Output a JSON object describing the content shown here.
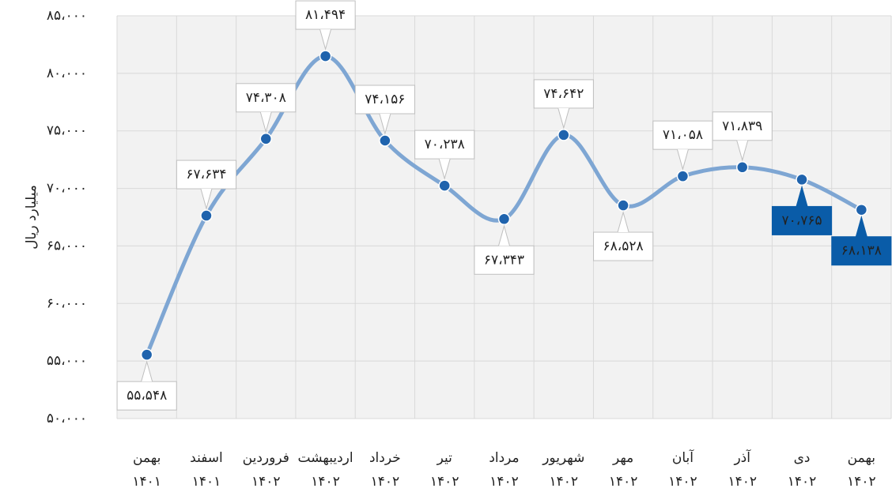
{
  "chart_data": {
    "type": "line",
    "y_label": "میلیارد ریال",
    "categories": [
      "بهمن\n۱۴۰۱",
      "اسفند\n۱۴۰۱",
      "فروردین\n۱۴۰۲",
      "اردیبهشت\n۱۴۰۲",
      "خرداد\n۱۴۰۲",
      "تیر\n۱۴۰۲",
      "مرداد\n۱۴۰۲",
      "شهریور\n۱۴۰۲",
      "مهر\n۱۴۰۲",
      "آبان\n۱۴۰۲",
      "آذر\n۱۴۰۲",
      "دی\n۱۴۰۲",
      "بهمن\n۱۴۰۲"
    ],
    "values": [
      55548,
      67634,
      74308,
      81494,
      74156,
      70238,
      67343,
      74642,
      68528,
      71058,
      71839,
      70765,
      68138
    ],
    "value_labels": [
      "۵۵،۵۴۸",
      "۶۷،۶۳۴",
      "۷۴،۳۰۸",
      "۸۱،۴۹۴",
      "۷۴،۱۵۶",
      "۷۰،۲۳۸",
      "۶۷،۳۴۳",
      "۷۴،۶۴۲",
      "۶۸،۵۲۸",
      "۷۱،۰۵۸",
      "۷۱،۸۳۹",
      "۷۰،۷۶۵",
      "۶۸،۱۳۸"
    ],
    "color": "#7ea6d3",
    "marker_color": "#1f63ad",
    "ylim": [
      50000,
      85000
    ],
    "yticks": [
      {
        "value": 50000,
        "label": "۵۰،۰۰۰"
      },
      {
        "value": 55000,
        "label": "۵۵،۰۰۰"
      },
      {
        "value": 60000,
        "label": "۶۰،۰۰۰"
      },
      {
        "value": 65000,
        "label": "۶۵،۰۰۰"
      },
      {
        "value": 70000,
        "label": "۷۰،۰۰۰"
      },
      {
        "value": 75000,
        "label": "۷۵،۰۰۰"
      },
      {
        "value": 80000,
        "label": "۸۰،۰۰۰"
      },
      {
        "value": 85000,
        "label": "۸۵،۰۰۰"
      }
    ],
    "grid": true
  }
}
